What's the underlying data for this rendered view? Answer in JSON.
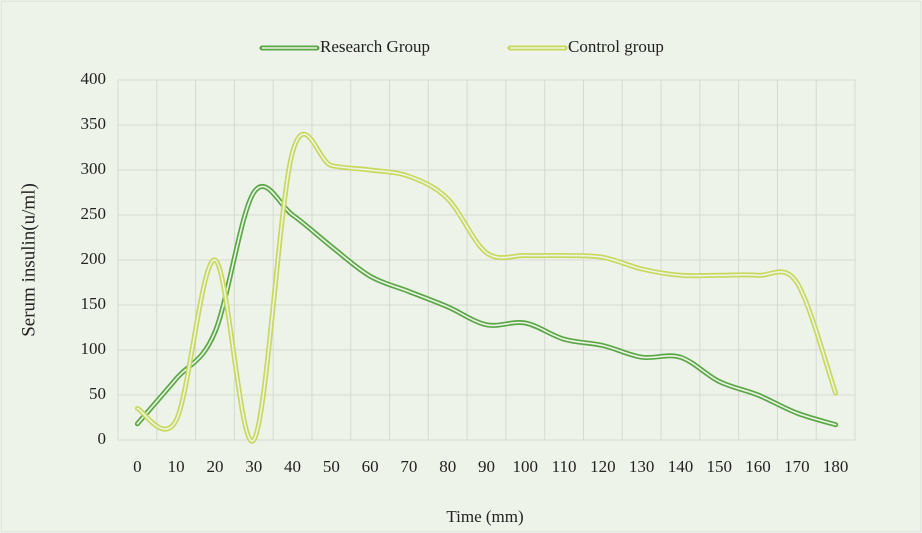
{
  "chart_data": {
    "type": "line",
    "xlabel": "Time (mm)",
    "ylabel": "Serum insulin(u/ml)",
    "categories": [
      0,
      10,
      20,
      30,
      40,
      50,
      60,
      70,
      80,
      90,
      100,
      110,
      120,
      130,
      140,
      150,
      160,
      170,
      180
    ],
    "series": [
      {
        "name": "Research Group",
        "color": "#5aa845",
        "values": [
          18,
          68,
          120,
          275,
          250,
          215,
          182,
          165,
          148,
          128,
          130,
          112,
          105,
          92,
          92,
          65,
          50,
          30,
          17
        ]
      },
      {
        "name": "Control group",
        "color": "#c8d95c",
        "values": [
          35,
          22,
          200,
          0,
          320,
          305,
          300,
          293,
          268,
          208,
          205,
          205,
          203,
          190,
          183,
          183,
          183,
          175,
          52
        ]
      }
    ],
    "ylim": [
      0,
      400
    ],
    "yticks": [
      0,
      50,
      100,
      150,
      200,
      250,
      300,
      350,
      400
    ],
    "grid": true,
    "legend": "top",
    "smooth": true
  }
}
